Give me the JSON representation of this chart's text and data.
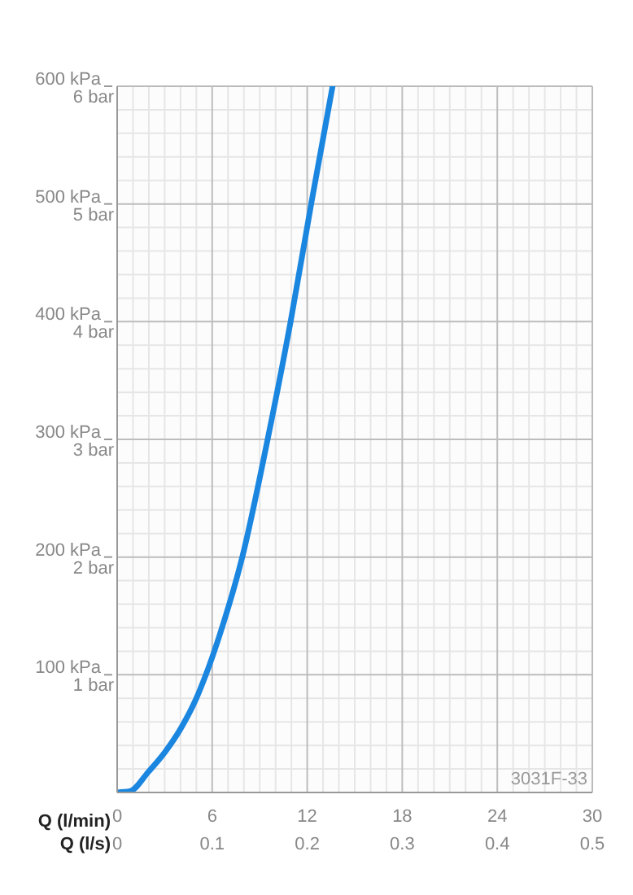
{
  "chart_data": {
    "type": "line",
    "xlabel": "Q (l/min)",
    "x2label": "Q (l/s)",
    "x": [
      0,
      0.8,
      2,
      3,
      4,
      5,
      5.6,
      6.5,
      7.9,
      9.5,
      10.95,
      12.25,
      13.6
    ],
    "series": [
      {
        "color": "#1a86e0",
        "values": [
          0,
          1,
          18,
          34,
          54,
          80,
          100,
          135,
          200,
          300,
          400,
          500,
          600
        ]
      }
    ],
    "xlim": [
      0,
      30
    ],
    "xticks": [
      0,
      {
        "value": 1,
        "label": null
      },
      {
        "value": 2,
        "label": null
      },
      {
        "value": 3,
        "label": null
      },
      {
        "value": 4,
        "label": null
      },
      {
        "value": 5,
        "label": null
      },
      6,
      {
        "value": 7,
        "label": null
      },
      {
        "value": 8,
        "label": null
      },
      {
        "value": 9,
        "label": null
      },
      {
        "value": 10,
        "label": null
      },
      {
        "value": 11,
        "label": null
      },
      12,
      {
        "value": 13,
        "label": null
      },
      {
        "value": 14,
        "label": null
      },
      {
        "value": 15,
        "label": null
      },
      {
        "value": 16,
        "label": null
      },
      {
        "value": 17,
        "label": null
      },
      18,
      {
        "value": 19,
        "label": null
      },
      {
        "value": 20,
        "label": null
      },
      {
        "value": 21,
        "label": null
      },
      {
        "value": 22,
        "label": null
      },
      {
        "value": 23,
        "label": null
      },
      24,
      {
        "value": 25,
        "label": null
      },
      {
        "value": 26,
        "label": null
      },
      {
        "value": 27,
        "label": null
      },
      {
        "value": 28,
        "label": null
      },
      {
        "value": 29,
        "label": null
      },
      30
    ],
    "x2lim": [
      0,
      0.5
    ],
    "x2ticks": [
      0,
      0.1,
      0.2,
      0.3,
      0.4,
      0.5
    ],
    "ylim": [
      0,
      600
    ],
    "yticks": [
      {
        "value": 0,
        "label": null
      },
      {
        "value": 20,
        "label": null
      },
      {
        "value": 40,
        "label": null
      },
      {
        "value": 60,
        "label": null
      },
      {
        "value": 80,
        "label": null
      },
      {
        "value": 100,
        "label": "100 kPa"
      },
      {
        "value": 120,
        "label": null
      },
      {
        "value": 140,
        "label": null
      },
      {
        "value": 160,
        "label": null
      },
      {
        "value": 180,
        "label": null
      },
      {
        "value": 200,
        "label": "200 kPa"
      },
      {
        "value": 220,
        "label": null
      },
      {
        "value": 240,
        "label": null
      },
      {
        "value": 260,
        "label": null
      },
      {
        "value": 280,
        "label": null
      },
      {
        "value": 300,
        "label": "300 kPa"
      },
      {
        "value": 320,
        "label": null
      },
      {
        "value": 340,
        "label": null
      },
      {
        "value": 360,
        "label": null
      },
      {
        "value": 380,
        "label": null
      },
      {
        "value": 400,
        "label": "400 kPa"
      },
      {
        "value": 420,
        "label": null
      },
      {
        "value": 440,
        "label": null
      },
      {
        "value": 460,
        "label": null
      },
      {
        "value": 480,
        "label": null
      },
      {
        "value": 500,
        "label": "500 kPa"
      },
      {
        "value": 520,
        "label": null
      },
      {
        "value": 540,
        "label": null
      },
      {
        "value": 560,
        "label": null
      },
      {
        "value": 580,
        "label": null
      },
      {
        "value": 600,
        "label": "600 kPa"
      }
    ],
    "y2lim": [
      0,
      6
    ],
    "y2ticks": [
      {
        "value": 1,
        "label": "1 bar"
      },
      {
        "value": 2,
        "label": "2 bar"
      },
      {
        "value": 3,
        "label": "3 bar"
      },
      {
        "value": 4,
        "label": "4 bar"
      },
      {
        "value": 5,
        "label": "5 bar"
      },
      {
        "value": 6,
        "label": "6 bar"
      }
    ],
    "grid": true,
    "marker": "none",
    "line_style": "solid",
    "annotations": [
      "3031F-33"
    ]
  }
}
